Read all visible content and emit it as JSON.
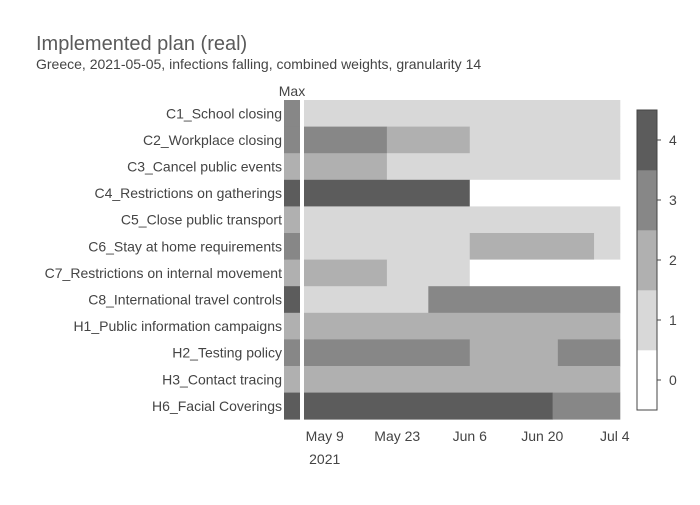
{
  "chart_data": {
    "type": "heatmap",
    "title": "Implemented plan (real)",
    "subtitle": "Greece, 2021-05-05, infections falling, combined weights, granularity 14",
    "max_label": "Max",
    "x_ticks": [
      {
        "date": "2021-05-09",
        "label": "May 9",
        "sublabel": "2021"
      },
      {
        "date": "2021-05-23",
        "label": "May 23"
      },
      {
        "date": "2021-06-06",
        "label": "Jun 6"
      },
      {
        "date": "2021-06-20",
        "label": "Jun 20"
      },
      {
        "date": "2021-07-04",
        "label": "Jul 4"
      }
    ],
    "x_range": [
      "2021-05-05",
      "2021-07-05"
    ],
    "colorscale": {
      "min": 0,
      "max": 4,
      "ticks": [
        0,
        1,
        2,
        3,
        4
      ],
      "colors": [
        "#ffffff",
        "#d8d8d8",
        "#b0b0b0",
        "#878787",
        "#5c5c5c"
      ]
    },
    "rows": [
      {
        "name": "C1_School closing",
        "max": 3,
        "segments": [
          {
            "start": "2021-05-05",
            "end": "2021-07-05",
            "value": 1
          }
        ]
      },
      {
        "name": "C2_Workplace closing",
        "max": 3,
        "segments": [
          {
            "start": "2021-05-05",
            "end": "2021-05-21",
            "value": 3
          },
          {
            "start": "2021-05-21",
            "end": "2021-06-06",
            "value": 2
          },
          {
            "start": "2021-06-06",
            "end": "2021-07-05",
            "value": 1
          }
        ]
      },
      {
        "name": "C3_Cancel public events",
        "max": 2,
        "segments": [
          {
            "start": "2021-05-05",
            "end": "2021-05-21",
            "value": 2
          },
          {
            "start": "2021-05-21",
            "end": "2021-07-05",
            "value": 1
          }
        ]
      },
      {
        "name": "C4_Restrictions on gatherings",
        "max": 4,
        "segments": [
          {
            "start": "2021-05-05",
            "end": "2021-06-06",
            "value": 4
          },
          {
            "start": "2021-06-06",
            "end": "2021-07-05",
            "value": 0
          }
        ]
      },
      {
        "name": "C5_Close public transport",
        "max": 2,
        "segments": [
          {
            "start": "2021-05-05",
            "end": "2021-07-05",
            "value": 1
          }
        ]
      },
      {
        "name": "C6_Stay at home requirements",
        "max": 3,
        "segments": [
          {
            "start": "2021-05-05",
            "end": "2021-06-06",
            "value": 1
          },
          {
            "start": "2021-06-06",
            "end": "2021-06-30",
            "value": 2
          },
          {
            "start": "2021-06-30",
            "end": "2021-07-05",
            "value": 1
          }
        ]
      },
      {
        "name": "C7_Restrictions on internal movement",
        "max": 2,
        "segments": [
          {
            "start": "2021-05-05",
            "end": "2021-05-21",
            "value": 2
          },
          {
            "start": "2021-05-21",
            "end": "2021-06-06",
            "value": 1
          },
          {
            "start": "2021-06-06",
            "end": "2021-07-05",
            "value": 0
          }
        ]
      },
      {
        "name": "C8_International travel controls",
        "max": 4,
        "segments": [
          {
            "start": "2021-05-05",
            "end": "2021-05-29",
            "value": 1
          },
          {
            "start": "2021-05-29",
            "end": "2021-07-05",
            "value": 3
          }
        ]
      },
      {
        "name": "H1_Public information campaigns",
        "max": 2,
        "segments": [
          {
            "start": "2021-05-05",
            "end": "2021-07-05",
            "value": 2
          }
        ]
      },
      {
        "name": "H2_Testing policy",
        "max": 3,
        "segments": [
          {
            "start": "2021-05-05",
            "end": "2021-06-06",
            "value": 3
          },
          {
            "start": "2021-06-06",
            "end": "2021-06-23",
            "value": 2
          },
          {
            "start": "2021-06-23",
            "end": "2021-07-05",
            "value": 3
          }
        ]
      },
      {
        "name": "H3_Contact tracing",
        "max": 2,
        "segments": [
          {
            "start": "2021-05-05",
            "end": "2021-07-05",
            "value": 2
          }
        ]
      },
      {
        "name": "H6_Facial Coverings",
        "max": 4,
        "segments": [
          {
            "start": "2021-05-05",
            "end": "2021-06-22",
            "value": 4
          },
          {
            "start": "2021-06-22",
            "end": "2021-07-05",
            "value": 3
          }
        ]
      }
    ]
  }
}
